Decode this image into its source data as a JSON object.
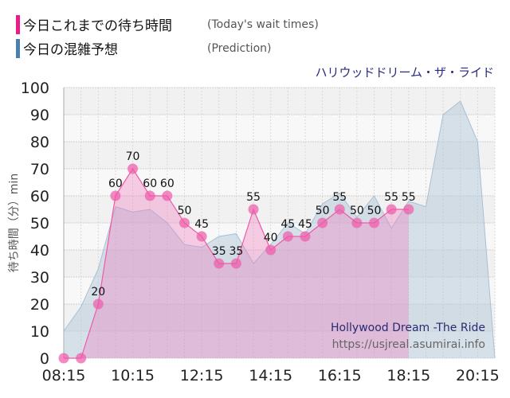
{
  "legend": [
    {
      "label": "今日これまでの待ち時間",
      "sub": "(Today's wait times)",
      "color": "#ee1a8c"
    },
    {
      "label": "今日の混雑予想",
      "sub": "(Prediction)",
      "color": "#4a7fb0"
    }
  ],
  "ride_name": "ハリウッドドリーム・ザ・ライド",
  "watermark": {
    "title": "Hollywood Dream -The Ride",
    "url": "https://usjreal.asumirai.info"
  },
  "chart_data": {
    "type": "area",
    "ylabel": "待ち時間（分）min",
    "ylim": [
      0,
      100
    ],
    "yticks": [
      0,
      10,
      20,
      30,
      40,
      50,
      60,
      70,
      80,
      90,
      100
    ],
    "xlim": [
      "08:15",
      "20:45"
    ],
    "xticks": [
      "08:15",
      "10:15",
      "12:15",
      "14:15",
      "16:15",
      "18:15",
      "20:15"
    ],
    "grid": true,
    "series": [
      {
        "name": "今日これまでの待ち時間",
        "color": "#ee5aa8",
        "x": [
          "08:15",
          "08:45",
          "09:15",
          "09:45",
          "10:15",
          "10:45",
          "11:15",
          "11:45",
          "12:15",
          "12:45",
          "13:15",
          "13:45",
          "14:15",
          "14:45",
          "15:15",
          "15:45",
          "16:15",
          "16:45",
          "17:15",
          "17:45",
          "18:15"
        ],
        "values": [
          0,
          0,
          20,
          60,
          70,
          60,
          60,
          50,
          45,
          35,
          35,
          55,
          40,
          45,
          45,
          50,
          55,
          50,
          50,
          55,
          55
        ]
      },
      {
        "name": "今日の混雑予想",
        "color": "#a8c0d4",
        "x": [
          "08:15",
          "08:45",
          "09:15",
          "09:45",
          "10:15",
          "10:45",
          "11:15",
          "11:45",
          "12:15",
          "12:45",
          "13:15",
          "13:45",
          "14:15",
          "14:45",
          "15:15",
          "15:45",
          "16:15",
          "16:45",
          "17:15",
          "17:45",
          "18:15",
          "18:45",
          "19:15",
          "19:45",
          "20:15",
          "20:45"
        ],
        "values": [
          10,
          19,
          33,
          56,
          54,
          55,
          50,
          42,
          41,
          45,
          46,
          35,
          42,
          50,
          46,
          57,
          61,
          52,
          60,
          48,
          58,
          56,
          90,
          95,
          80,
          0
        ]
      }
    ]
  }
}
